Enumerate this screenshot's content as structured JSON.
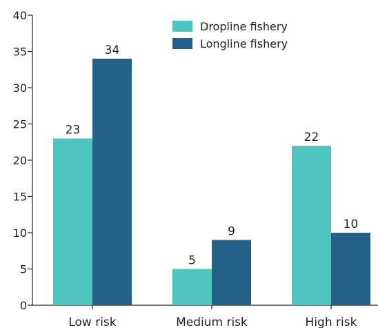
{
  "chart_data": {
    "type": "bar",
    "title": "",
    "xlabel": "",
    "ylabel": "",
    "categories": [
      "Low risk",
      "Medium risk",
      "High risk"
    ],
    "series": [
      {
        "name": "Dropline fishery",
        "values": [
          23,
          5,
          22
        ],
        "color": "#50c4be"
      },
      {
        "name": "Longline fishery",
        "values": [
          34,
          9,
          10
        ],
        "color": "#236188"
      }
    ],
    "ylim": [
      0,
      40
    ],
    "yticks": [
      0,
      5,
      10,
      15,
      20,
      25,
      30,
      35,
      40
    ],
    "grid": false,
    "legend_position": "top-right",
    "data_labels": true,
    "axis_color": "#231f20"
  }
}
